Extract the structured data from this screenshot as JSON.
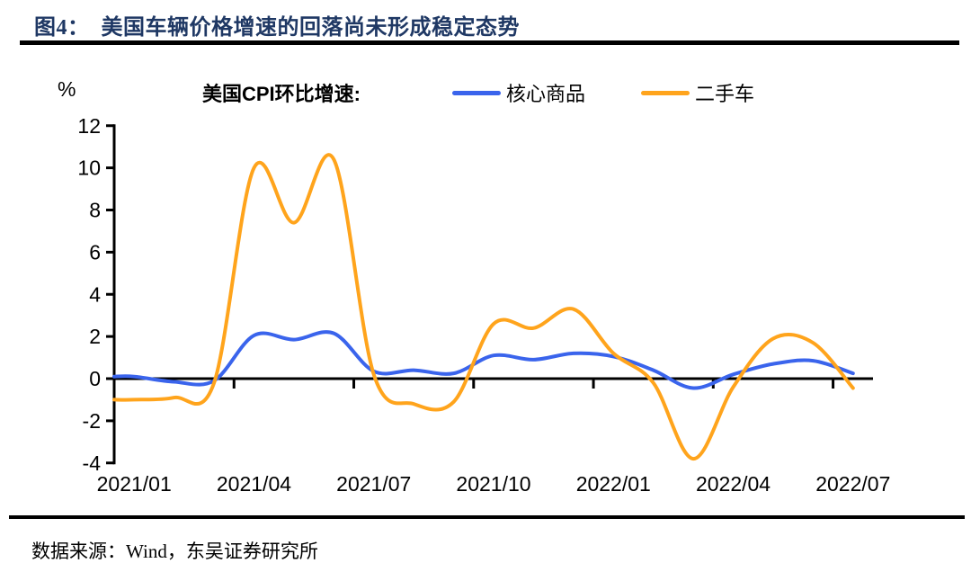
{
  "figure": {
    "title": "图4：  美国车辆价格增速的回落尚未形成稳定态势",
    "title_color": "#1F3864",
    "source": "数据来源：Wind，东吴证券研究所"
  },
  "legend": {
    "title": "美国CPI环比增速:",
    "items": [
      {
        "label": "核心商品",
        "color": "#3A64EC"
      },
      {
        "label": "二手车",
        "color": "#FFA41C"
      }
    ]
  },
  "chart_data": {
    "type": "line",
    "title": "美国CPI环比增速",
    "unit_label": "%",
    "smooth": true,
    "grid": false,
    "legend_position": "top",
    "ylim": [
      -4,
      12
    ],
    "yticks": [
      12,
      10,
      8,
      6,
      4,
      2,
      0,
      -2,
      -4
    ],
    "x": [
      "2021/01",
      "2021/02",
      "2021/03",
      "2021/04",
      "2021/05",
      "2021/06",
      "2021/07",
      "2021/08",
      "2021/09",
      "2021/10",
      "2021/11",
      "2021/12",
      "2022/01",
      "2022/02",
      "2022/03",
      "2022/04",
      "2022/05",
      "2022/06",
      "2022/07"
    ],
    "x_tick_labels": [
      "2021/01",
      "2021/04",
      "2021/07",
      "2021/10",
      "2022/01",
      "2022/04",
      "2022/07"
    ],
    "series": [
      {
        "name": "核心商品",
        "color": "#3A64EC",
        "values": [
          0.1,
          -0.15,
          -0.1,
          2.05,
          1.85,
          2.15,
          0.35,
          0.4,
          0.25,
          1.1,
          0.9,
          1.2,
          1.05,
          0.4,
          -0.45,
          0.2,
          0.7,
          0.85,
          0.25
        ]
      },
      {
        "name": "二手车",
        "color": "#FFA41C",
        "values": [
          -1.0,
          -0.9,
          -0.2,
          10.0,
          7.4,
          10.4,
          0.2,
          -1.2,
          -1.1,
          2.6,
          2.4,
          3.3,
          1.2,
          -0.2,
          -3.8,
          -0.4,
          1.9,
          1.7,
          -0.45
        ]
      }
    ]
  }
}
